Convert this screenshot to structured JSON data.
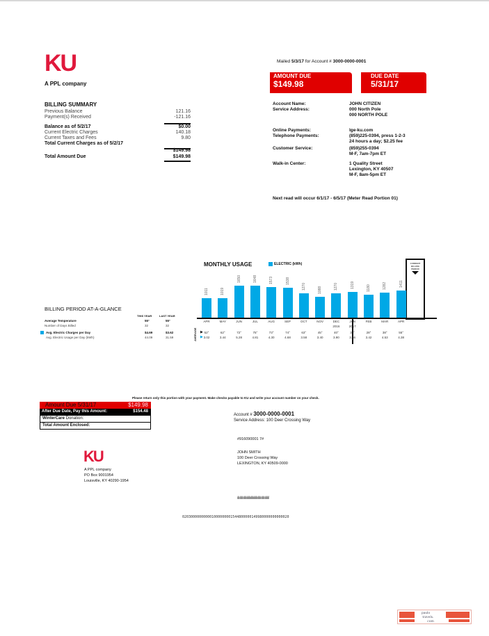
{
  "header": {
    "logo": "KU",
    "tagline": "A PPL company",
    "mailed_label": "Mailed",
    "mailed_date": "5/3/17",
    "for_account_label": "for Account #",
    "account_number": "3000-0000-0001"
  },
  "amount_due": {
    "label": "AMOUNT DUE",
    "value": "$149.98"
  },
  "due_date": {
    "label": "DUE DATE",
    "value": "5/31/17"
  },
  "billing_summary": {
    "title": "BILLING SUMMARY",
    "rows": [
      {
        "label": "Previous Balance",
        "value": "121.16",
        "bold": false
      },
      {
        "label": "Payment(s) Received",
        "value": "-121.16",
        "bold": false
      },
      {
        "label": "Balance as of 5/2/17",
        "value": "$0.00",
        "bold": true
      },
      {
        "label": "Current Electric Charges",
        "value": "140.18",
        "bold": false
      },
      {
        "label": "Current Taxes and Fees",
        "value": "9.80",
        "bold": false
      },
      {
        "label": "Total Current Charges as of 5/2/17",
        "value": "$149.98",
        "bold": true
      },
      {
        "label": "Total Amount Due",
        "value": "$149.98",
        "bold": true
      }
    ]
  },
  "account_info": [
    {
      "label": "Account Name:",
      "lines": [
        "JOHN CITIZEN"
      ]
    },
    {
      "label": "Service Address:",
      "lines": [
        "000 North Pole",
        "000 NORTH POLE"
      ]
    },
    {
      "label": "Online Payments:",
      "lines": [
        "lge-ku.com"
      ]
    },
    {
      "label": "Telephone Payments:",
      "lines": [
        "(859)225-0394, press 1-2-3",
        "24 hours a day; $2.25 fee"
      ]
    },
    {
      "label": "Customer Service:",
      "lines": [
        "(859)255-0394",
        "M-F, 7am-7pm ET"
      ]
    },
    {
      "label": "Walk-in Center:",
      "lines": [
        "1 Quality Street",
        "Lexington, KY 40507",
        "M-F, 8am-5pm ET"
      ]
    }
  ],
  "next_read": "Next read will occur 6/1/17 - 6/5/17 (Meter Read Portion 01)",
  "glance": {
    "title": "BILLING PERIOD AT-A-GLANCE",
    "col_this": "THIS YEAR",
    "col_last": "LAST YEAR",
    "rows": [
      {
        "label": "Average Temperature",
        "this": "55°",
        "last": "55°",
        "bold": true
      },
      {
        "label": "Number of Days Billed",
        "this": "32",
        "last": "32",
        "bold": false
      },
      {
        "label": "Avg. Electric Charges per Day",
        "this": "$4.69",
        "last": "$3.62",
        "bold": true
      },
      {
        "label": "Avg. Electric Usage per Day (kWh)",
        "this": "44.09",
        "last": "31.59",
        "bold": false
      }
    ]
  },
  "colors": {
    "brand_red": "#e0193c",
    "due_red": "#e00000",
    "usage_blue": "#00a8e6"
  },
  "chart_data": {
    "type": "bar",
    "title": "MONTHLY USAGE",
    "legend": "ELECTRIC (kWh)",
    "legend_position": "top",
    "categories": [
      "APR",
      "MAY",
      "JUN",
      "JUL",
      "AUG",
      "SEP",
      "OCT",
      "NOV",
      "DEC",
      "JAN",
      "FEB",
      "MAR",
      "APR"
    ],
    "values": [
      1011,
      1019,
      1650,
      1648,
      1573,
      1538,
      1270,
      1088,
      1270,
      1319,
      1180,
      1282,
      1411
    ],
    "year_labels": {
      "DEC": "2016",
      "JAN": "2017"
    },
    "current_period_label": "CURRENT BILLING PERIOD",
    "row_axis_label": "AVERAGE",
    "avg_temperature": [
      "52°",
      "62°",
      "72°",
      "75°",
      "73°",
      "74°",
      "63°",
      "45°",
      "40°",
      "33°",
      "28°",
      "38°",
      "55°"
    ],
    "avg_usage": [
      "3.02",
      "3.44",
      "5.28",
      "4.81",
      "4.30",
      "4.68",
      "3.58",
      "3.40",
      "3.90",
      "3.66",
      "3.42",
      "4.53",
      "4.38"
    ],
    "ylim": [
      0,
      1650
    ]
  },
  "remit": {
    "instruction": "Please return only this portion with your payment. Make checks payable to KU and write your account number on your check.",
    "amount_due_label": "Amount Due 5/31/17",
    "amount_due_value": "$149.98",
    "after_due_label": "After Due Date, Pay this Amount:",
    "after_due_value": "$154.48",
    "wintercare_bold": "WinterCare",
    "wintercare_rest": "Donation:",
    "total_enclosed": "Total Amount Enclosed:",
    "account_label": "Account #",
    "account_number": "3000-0000-0001",
    "service_address": "Service Address: 100 Deer Crossing Way",
    "ref": "#916090001 7#",
    "customer": [
      "JOHN SMITH",
      "100 Deer Crossing Way",
      "LEXINGTON, KY 40509-0000"
    ],
    "company": [
      "A PPL company",
      "PO Box 9001954",
      "Louisville, KY 40290-1954"
    ],
    "barcode_text": "ılıılılıılılıılılıılılıılılıılılıılılıılılıl",
    "scanline": "020300000000001000000001544800000149980000000000020"
  },
  "watermark": "paulo travels .com"
}
